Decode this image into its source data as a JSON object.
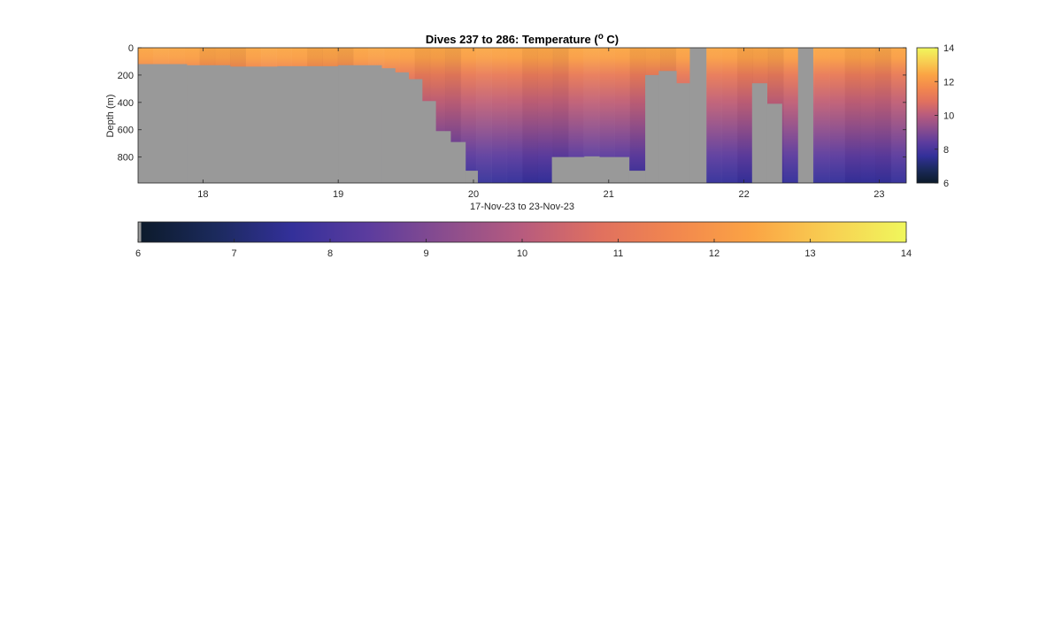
{
  "chart_data": {
    "type": "heatmap",
    "title_main": "Dives 237 to 286: Temperature (",
    "title_sup": "o",
    "title_end": " C)",
    "xlabel": "17-Nov-23 to 23-Nov-23",
    "ylabel": "Depth (m)",
    "x_range": [
      17.52,
      23.2
    ],
    "y_range": [
      0,
      990
    ],
    "y_reversed": true,
    "x_ticks": [
      "18",
      "19",
      "20",
      "21",
      "22",
      "23"
    ],
    "x_tick_values": [
      18,
      19,
      20,
      21,
      22,
      23
    ],
    "y_ticks": [
      "0",
      "200",
      "400",
      "600",
      "800"
    ],
    "y_tick_values": [
      0,
      200,
      400,
      600,
      800
    ],
    "color_range": [
      6,
      14
    ],
    "colormap": [
      "#0c1a2a",
      "#1b2a5c",
      "#33309a",
      "#5c3c9e",
      "#8a4d8e",
      "#b75b7e",
      "#e0705f",
      "#f2874e",
      "#fba444",
      "#f8cf52",
      "#f0f75c"
    ],
    "missing_color": "#999999",
    "side_colorbar_ticks": [
      "14",
      "12",
      "10",
      "8",
      "6"
    ],
    "side_colorbar_values": [
      14,
      12,
      10,
      8,
      6
    ],
    "bottom_colorbar_ticks": [
      "6",
      "7",
      "8",
      "9",
      "10",
      "11",
      "12",
      "13",
      "14"
    ],
    "bottom_colorbar_values": [
      6,
      7,
      8,
      9,
      10,
      11,
      12,
      13,
      14
    ],
    "surface_temp_c": 12.2,
    "deep_temp_c": 7.6,
    "gray_profile": [
      {
        "x0": 17.52,
        "x1": 17.88,
        "gray_from_m": 120
      },
      {
        "x0": 17.88,
        "x1": 18.2,
        "gray_from_m": 128
      },
      {
        "x0": 18.2,
        "x1": 18.55,
        "gray_from_m": 138
      },
      {
        "x0": 18.55,
        "x1": 19.0,
        "gray_from_m": 135
      },
      {
        "x0": 19.0,
        "x1": 19.32,
        "gray_from_m": 128
      },
      {
        "x0": 19.32,
        "x1": 19.42,
        "gray_from_m": 150
      },
      {
        "x0": 19.42,
        "x1": 19.52,
        "gray_from_m": 180
      },
      {
        "x0": 19.52,
        "x1": 19.62,
        "gray_from_m": 230
      },
      {
        "x0": 19.62,
        "x1": 19.72,
        "gray_from_m": 390
      },
      {
        "x0": 19.72,
        "x1": 19.83,
        "gray_from_m": 610
      },
      {
        "x0": 19.83,
        "x1": 19.94,
        "gray_from_m": 690
      },
      {
        "x0": 19.94,
        "x1": 20.03,
        "gray_from_m": 900
      },
      {
        "x0": 20.58,
        "x1": 20.82,
        "gray_from_m": 800
      },
      {
        "x0": 20.82,
        "x1": 20.93,
        "gray_from_m": 795
      },
      {
        "x0": 20.93,
        "x1": 21.15,
        "gray_from_m": 800
      },
      {
        "x0": 21.15,
        "x1": 21.27,
        "gray_from_m": 900
      },
      {
        "x0": 21.27,
        "x1": 21.37,
        "gray_from_m": 200
      },
      {
        "x0": 21.37,
        "x1": 21.5,
        "gray_from_m": 170
      },
      {
        "x0": 21.5,
        "x1": 21.6,
        "gray_from_m": 260
      },
      {
        "x0": 21.6,
        "x1": 21.72,
        "gray_from_m": 0
      },
      {
        "x0": 22.06,
        "x1": 22.17,
        "gray_from_m": 260
      },
      {
        "x0": 22.17,
        "x1": 22.28,
        "gray_from_m": 410
      },
      {
        "x0": 22.4,
        "x1": 22.51,
        "gray_from_m": 0
      }
    ]
  }
}
